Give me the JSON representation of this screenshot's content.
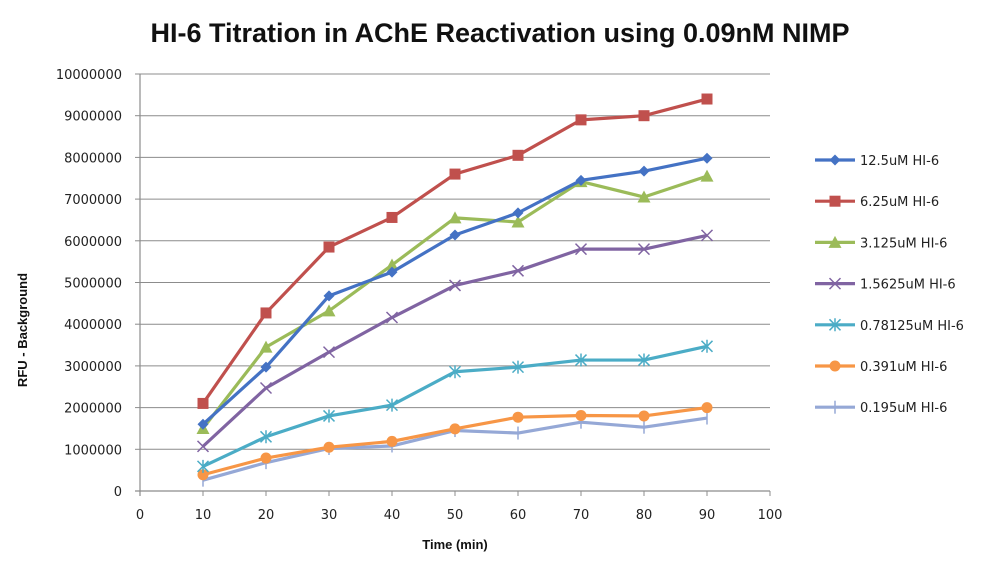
{
  "chart_data": {
    "type": "line",
    "title": "HI-6 Titration in AChE Reactivation using 0.09nM NIMP",
    "xlabel": "Time (min)",
    "ylabel": "RFU - Background",
    "xlim": [
      0,
      100
    ],
    "ylim": [
      0,
      10000000
    ],
    "x_ticks": [
      0,
      10,
      20,
      30,
      40,
      50,
      60,
      70,
      80,
      90,
      100
    ],
    "y_ticks": [
      0,
      1000000,
      2000000,
      3000000,
      4000000,
      5000000,
      6000000,
      7000000,
      8000000,
      9000000,
      10000000
    ],
    "grid": "horizontal",
    "legend_position": "right",
    "x": [
      10,
      20,
      30,
      40,
      50,
      60,
      70,
      80,
      90
    ],
    "series": [
      {
        "name": "12.5uM HI-6",
        "color": "#4472C4",
        "marker": "diamond",
        "values": [
          1600000,
          2970000,
          4680000,
          5250000,
          6140000,
          6670000,
          7450000,
          7670000,
          7980000
        ]
      },
      {
        "name": "6.25uM HI-6",
        "color": "#C0504D",
        "marker": "square",
        "values": [
          2100000,
          4270000,
          5850000,
          6560000,
          7600000,
          8050000,
          8900000,
          9000000,
          9400000
        ]
      },
      {
        "name": "3.125uM HI-6",
        "color": "#9BBB59",
        "marker": "triangle",
        "values": [
          1500000,
          3450000,
          4320000,
          5420000,
          6550000,
          6450000,
          7420000,
          7050000,
          7550000
        ]
      },
      {
        "name": "1.5625uM HI-6",
        "color": "#8064A2",
        "marker": "x",
        "values": [
          1070000,
          2470000,
          3330000,
          4160000,
          4930000,
          5280000,
          5800000,
          5800000,
          6130000
        ]
      },
      {
        "name": "0.78125uM HI-6",
        "color": "#4BACC6",
        "marker": "star",
        "values": [
          590000,
          1300000,
          1800000,
          2060000,
          2860000,
          2970000,
          3140000,
          3140000,
          3470000
        ]
      },
      {
        "name": "0.391uM HI-6",
        "color": "#F79646",
        "marker": "circle",
        "values": [
          390000,
          790000,
          1050000,
          1190000,
          1490000,
          1770000,
          1810000,
          1800000,
          2000000
        ]
      },
      {
        "name": "0.195uM HI-6",
        "color": "#95A8D6",
        "marker": "plus",
        "values": [
          260000,
          680000,
          1020000,
          1080000,
          1450000,
          1390000,
          1650000,
          1530000,
          1750000
        ]
      }
    ]
  }
}
